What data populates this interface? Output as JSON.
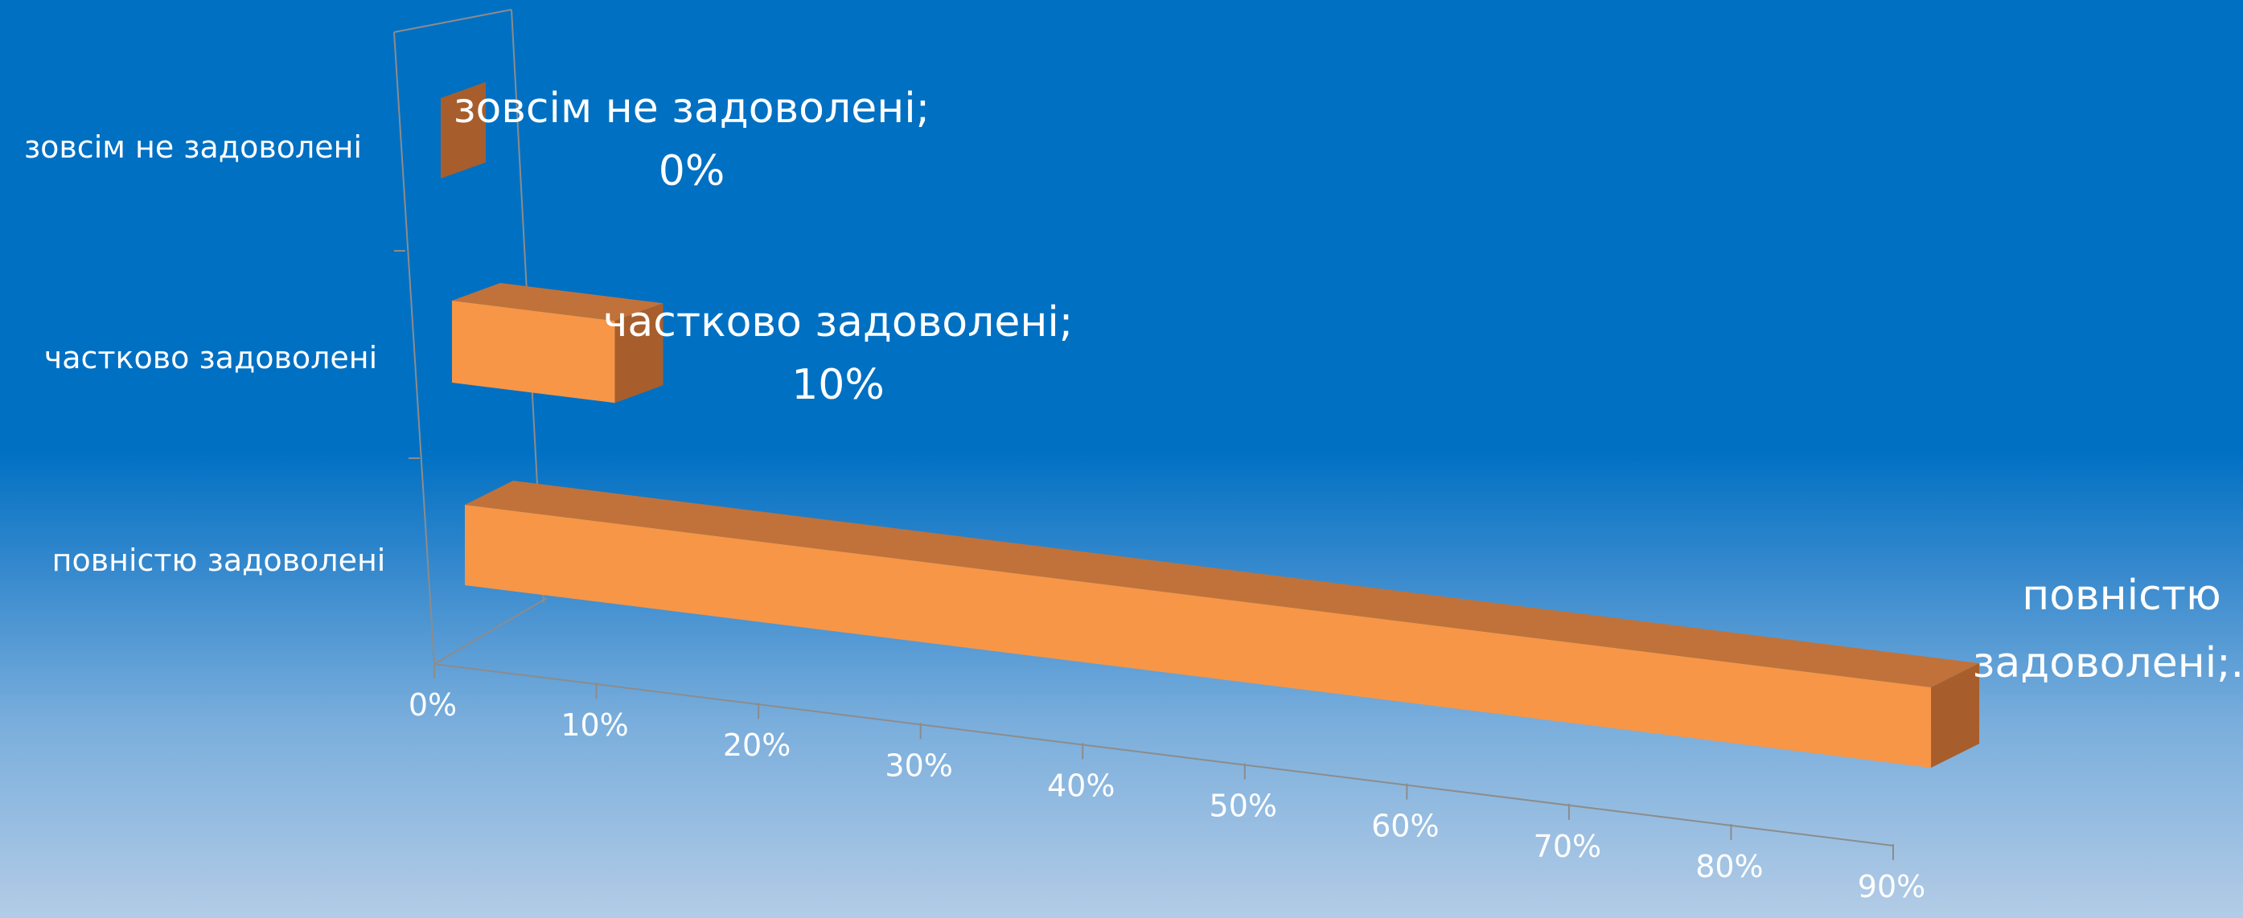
{
  "chart_data": {
    "type": "bar",
    "orientation": "horizontal",
    "style": "3d",
    "categories": [
      "повністю задоволені",
      "частково задоволені",
      "зовсім не задоволені"
    ],
    "values": [
      90,
      10,
      0
    ],
    "data_labels": [
      [
        "повністю",
        "задоволені;..."
      ],
      [
        "частково задоволені;",
        "10%"
      ],
      [
        "зовсім не задоволені;",
        "0%"
      ]
    ],
    "x_ticks": [
      "0%",
      "10%",
      "20%",
      "30%",
      "40%",
      "50%",
      "60%",
      "70%",
      "80%",
      "90%"
    ],
    "xlim": [
      0,
      90
    ],
    "unit": "%",
    "grid": false,
    "legend": "none",
    "colors": {
      "bar_front": "#f79646",
      "bar_top": "#c0723a",
      "bar_side": "#a75e2c",
      "axis": "#8c8c8c",
      "text": "#ffffff"
    }
  }
}
